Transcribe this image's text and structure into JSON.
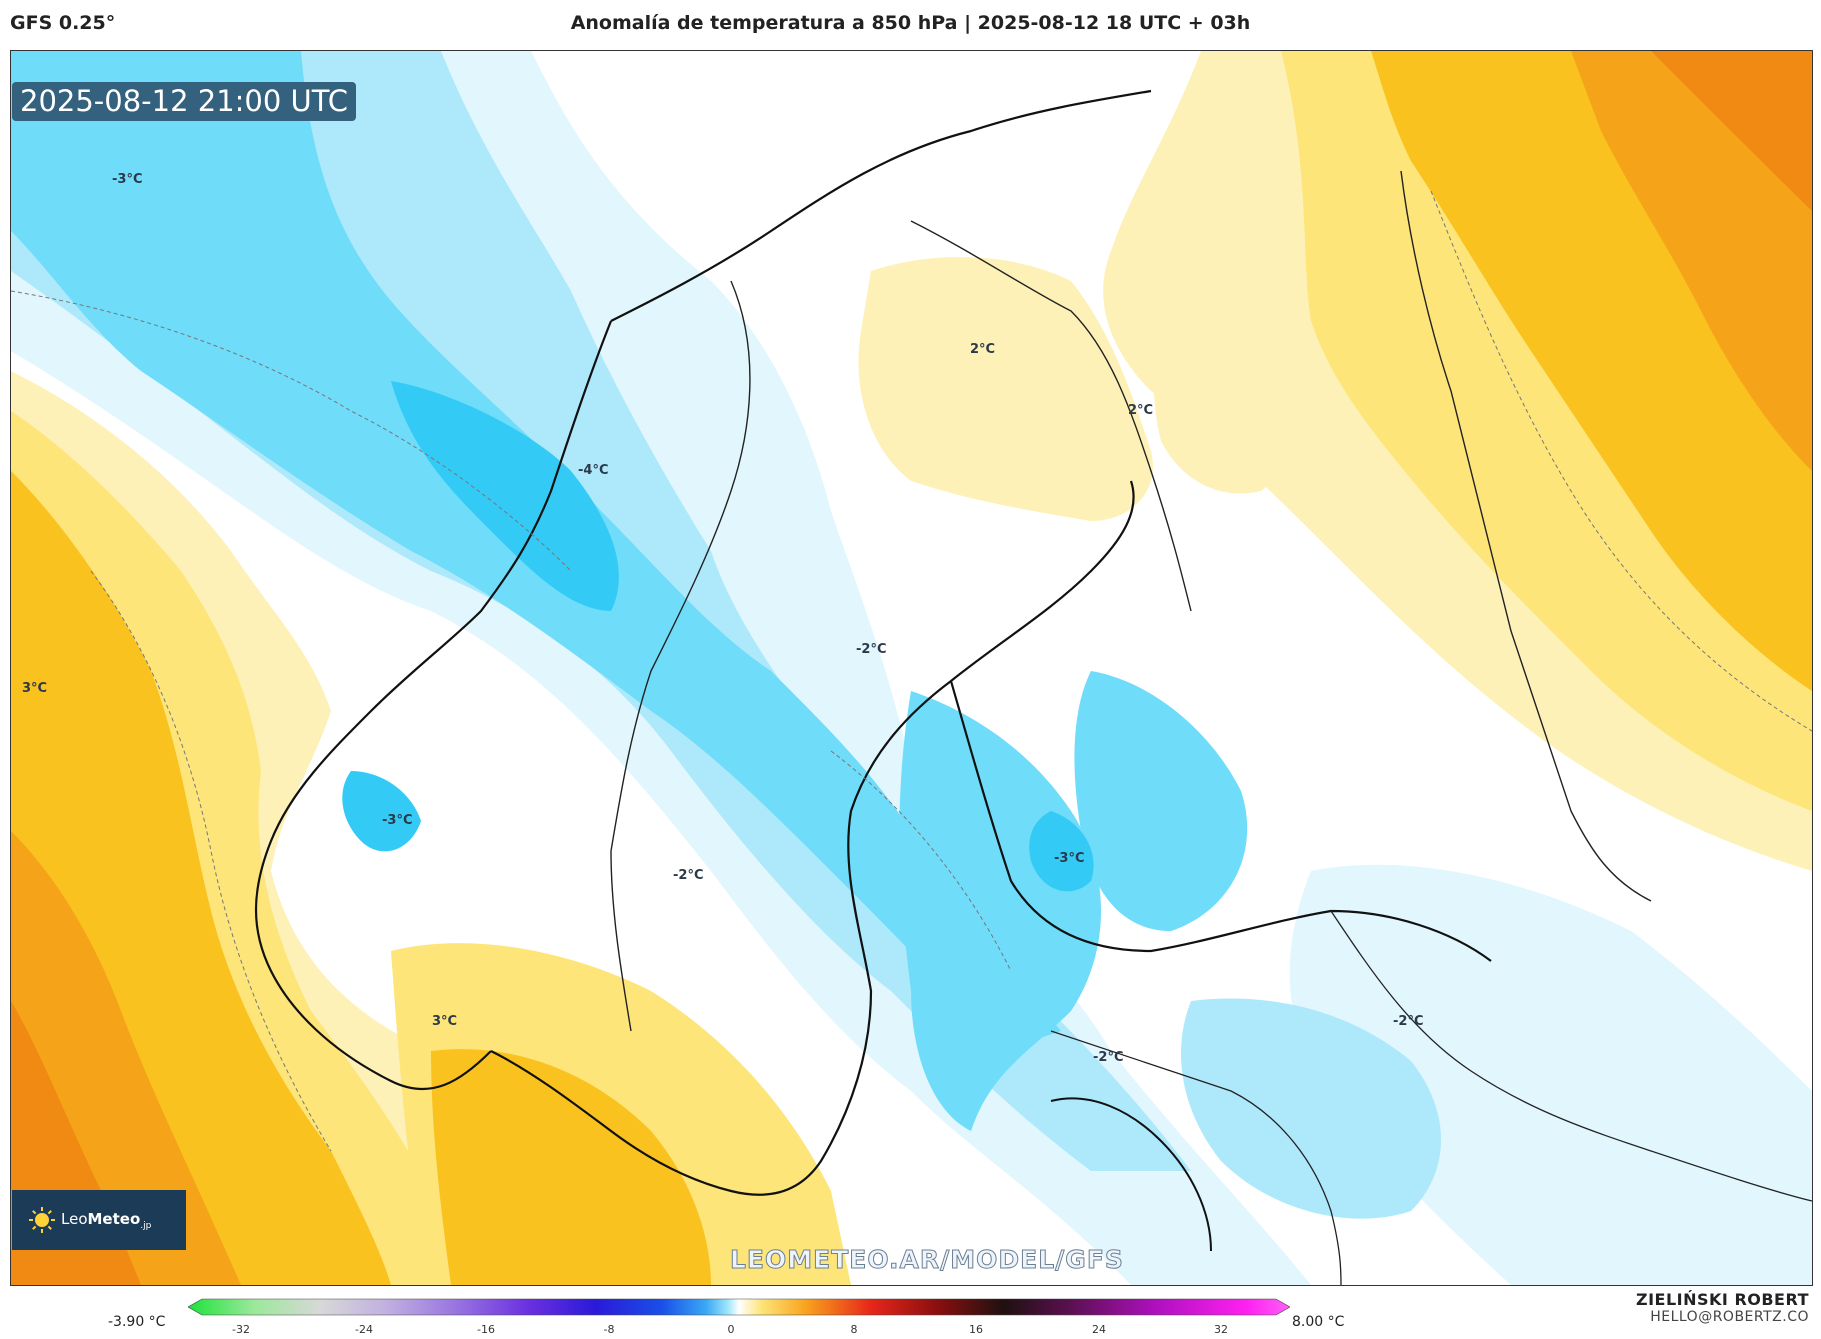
{
  "header": {
    "model": "GFS 0.25°",
    "title": "Anomalía de temperatura a 850 hPa | 2025-08-12 18 UTC + 03h"
  },
  "map": {
    "valid_time": "2025-08-12 21:00 UTC",
    "watermark": "LEOMETEO.AR/MODEL/GFS",
    "region": "Scandinavia, Finland, Baltic",
    "contour_labels": [
      "-3°C",
      "-4°C",
      "2°C",
      "2°C",
      "3°C",
      "-2°C",
      "-3°C",
      "-2°C",
      "-3°C",
      "3°C",
      "-2°C",
      "-2°C"
    ]
  },
  "logo": {
    "brand_light": "Leo",
    "brand_bold": "Meteo",
    "suffix": ".jp"
  },
  "colorbar": {
    "cursor_value": "-3.90 °C",
    "max_value": "8.00 °C",
    "ticks": [
      "-32",
      "-24",
      "-16",
      "-8",
      "0",
      "8",
      "16",
      "24",
      "32"
    ]
  },
  "author": {
    "name": "ZIELIŃSKI ROBERT",
    "email": "HELLO@ROBERTZ.CO"
  },
  "colors": {
    "warm_dark": "#f08a12",
    "warm_mid": "#f9c21e",
    "warm_light": "#fde57a",
    "warm_pale": "#fdf1b8",
    "neutral": "#ffffff",
    "cool_pale": "#e1f6fd",
    "cool_light": "#aee9fb",
    "cool_mid": "#6fdcfa",
    "cool_strong": "#33cbf5",
    "badge_bg": "#34617d",
    "logo_bg": "#1c3b57"
  }
}
